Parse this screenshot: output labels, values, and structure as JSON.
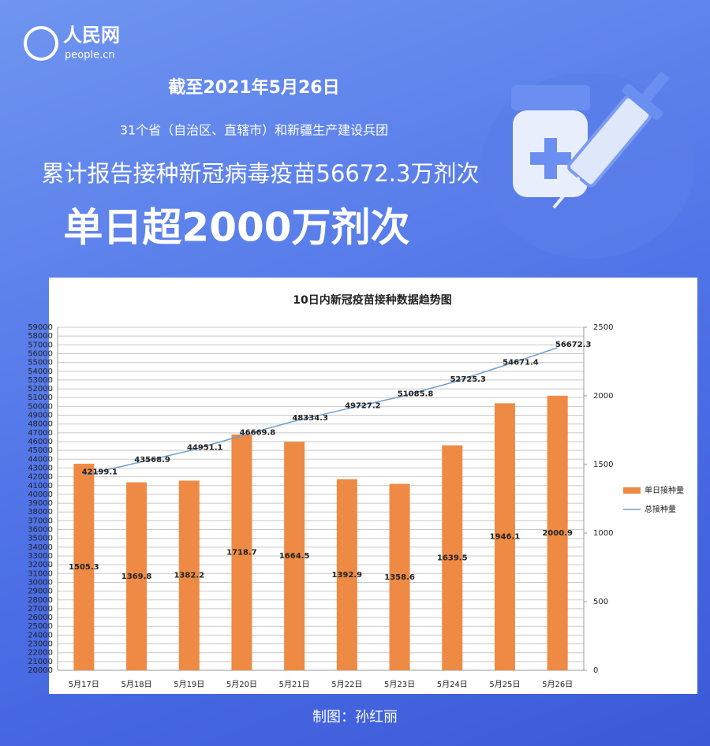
{
  "logo": {
    "name": "人民网",
    "site": "people.cn"
  },
  "header": {
    "date": "截至2021年5月26日",
    "scope": "31个省（自治区、直辖市）和新疆生产建设兵团",
    "total": "累计报告接种新冠病毒疫苗56672.3万剂次",
    "headline": "单日超2000万剂次"
  },
  "footer": "制图：孙红丽",
  "chart_data": {
    "type": "combo",
    "title": "10日内新冠疫苗接种数据趋势图",
    "categories": [
      "5月17日",
      "5月18日",
      "5月19日",
      "5月20日",
      "5月21日",
      "5月22日",
      "5月23日",
      "5月24日",
      "5月25日",
      "5月26日"
    ],
    "series": [
      {
        "name": "单日接种量",
        "type": "bar",
        "axis": "y2",
        "color": "#ee8a44",
        "values": [
          1505.3,
          1369.8,
          1382.2,
          1718.7,
          1664.5,
          1392.9,
          1358.6,
          1639.5,
          1946.1,
          2000.9
        ]
      },
      {
        "name": "总接种量",
        "type": "line",
        "axis": "y",
        "color": "#6c9fd0",
        "values": [
          42199.1,
          43568.9,
          44951.1,
          46669.8,
          48334.3,
          49727.2,
          51085.8,
          52725.3,
          54671.4,
          56672.3
        ]
      }
    ],
    "ylim": [
      20000,
      59000
    ],
    "yticks": [
      20000,
      21000,
      22000,
      23000,
      24000,
      25000,
      26000,
      27000,
      28000,
      29000,
      30000,
      31000,
      32000,
      33000,
      34000,
      35000,
      36000,
      37000,
      38000,
      39000,
      40000,
      41000,
      42000,
      43000,
      44000,
      45000,
      46000,
      47000,
      48000,
      49000,
      50000,
      51000,
      52000,
      53000,
      54000,
      55000,
      56000,
      57000,
      58000,
      59000
    ],
    "y2lim": [
      0,
      2500
    ],
    "y2ticks": [
      0,
      500,
      1000,
      1500,
      2000,
      2500
    ],
    "grid": true,
    "legend": "right"
  }
}
